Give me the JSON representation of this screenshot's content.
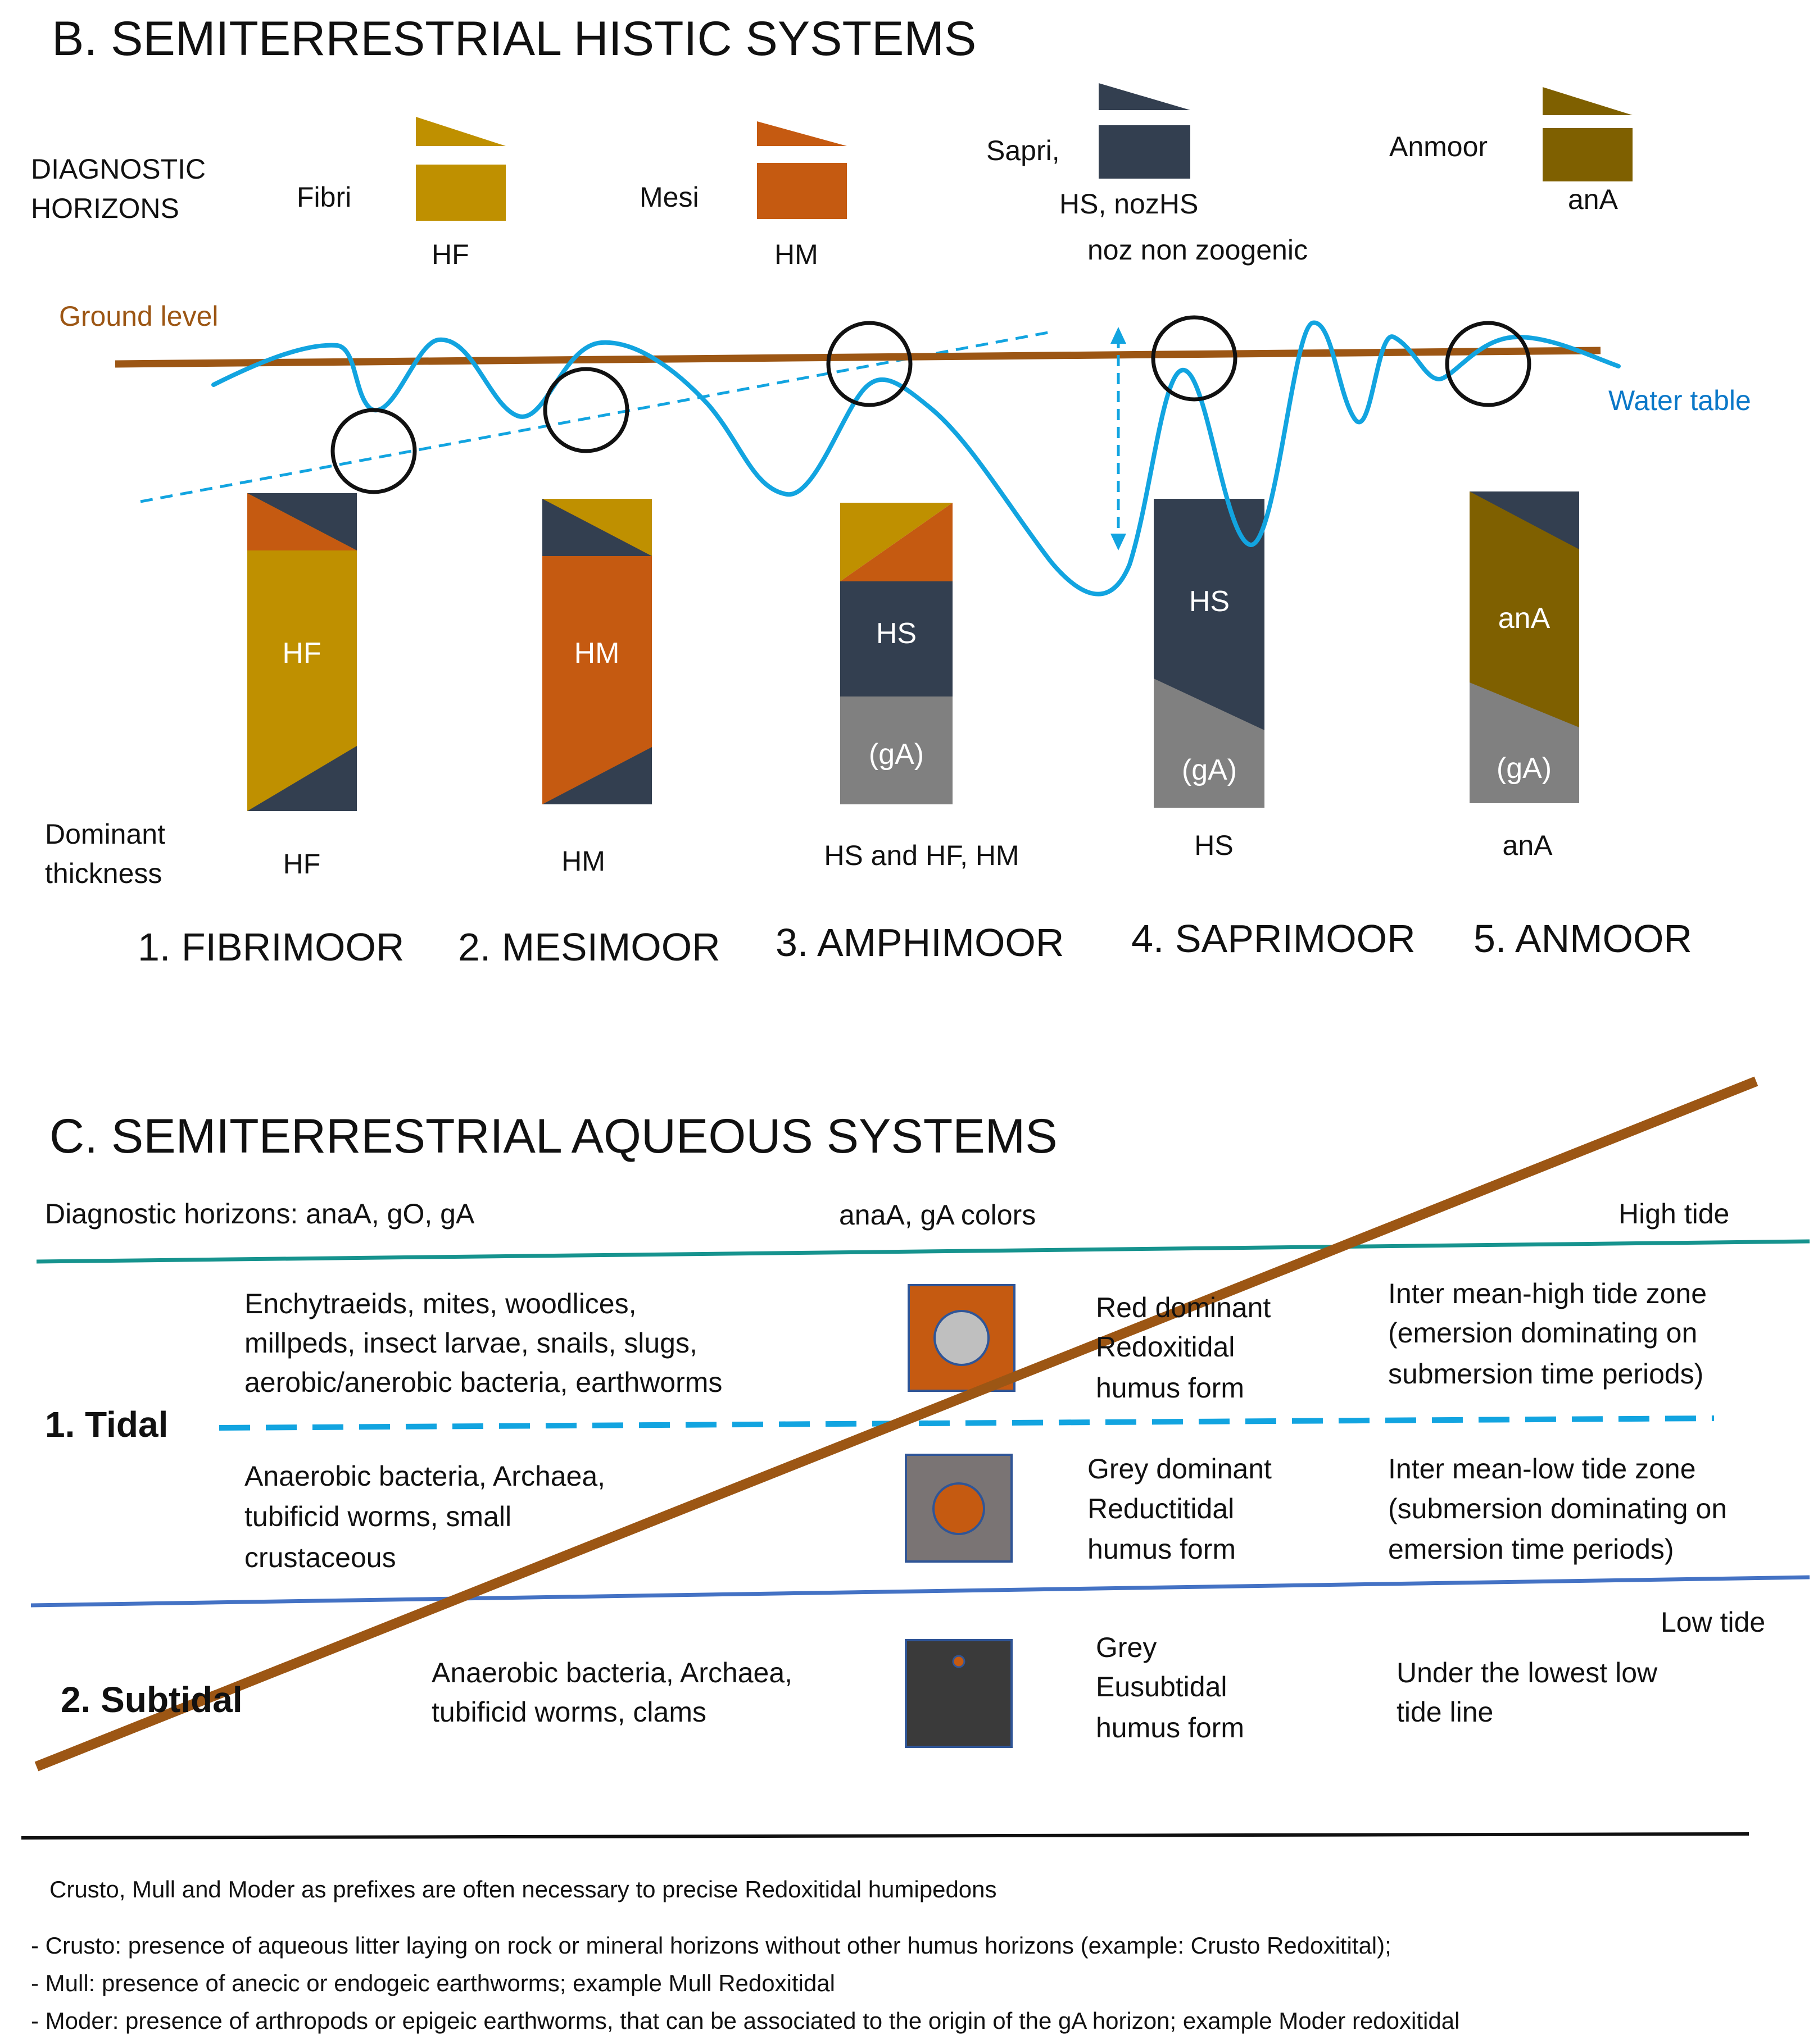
{
  "colors": {
    "fibri": "#bf9000",
    "mesi": "#c55a11",
    "sapri": "#333f50",
    "anmoor": "#7f6000",
    "grey": "#808080",
    "ground": "#9c5614",
    "water": "#12a4e0",
    "teal": "#16938e",
    "blue": "#4472c4",
    "darkgrey": "#3a3a3a"
  },
  "sectionB": {
    "title": "B. SEMITERRESTRIAL HISTIC SYSTEMS",
    "diagnostic_label_1": "DIAGNOSTIC",
    "diagnostic_label_2": "HORIZONS",
    "fibri": "Fibri",
    "hf": "HF",
    "mesi": "Mesi",
    "hm": "HM",
    "sapri": "Sapri,",
    "hs_noz": "HS, nozHS",
    "noz_note": "noz non zoogenic",
    "anmoor": "Anmoor",
    "ana": "anA",
    "ground_level": "Ground level",
    "water_table": "Water table",
    "dominant_1": "Dominant",
    "dominant_2": "thickness",
    "col1_hf": "HF",
    "col2_hm": "HM",
    "col3_hs": "HS",
    "col3_ga": "(gA)",
    "col4_hs": "HS",
    "col4_ga": "(gA)",
    "col5_ana": "anA",
    "col5_ga": "(gA)",
    "dom1": "HF",
    "dom2": "HM",
    "dom3": "HS and HF, HM",
    "dom4": "HS",
    "dom5": "anA",
    "moor1": "1. FIBRIMOOR",
    "moor2": "2. MESIMOOR",
    "moor3": "3. AMPHIMOOR",
    "moor4": "4. SAPRIMOOR",
    "moor5": "5. ANMOOR"
  },
  "sectionC": {
    "title": "C. SEMITERRESTRIAL AQUEOUS SYSTEMS",
    "diag": "Diagnostic horizons: anaA, gO, gA",
    "colors_label": "anaA, gA colors",
    "high_tide": "High tide",
    "low_tide": "Low tide",
    "tidal": "1. Tidal",
    "subtidal": "2. Subtidal",
    "org1": [
      "Enchytraeids, mites, woodlices,",
      "millpeds, insect larvae, snails, slugs,",
      "aerobic/anerobic bacteria, earthworms"
    ],
    "form1": [
      "Red dominant",
      "Redoxitidal",
      "humus form"
    ],
    "zone1": [
      "Inter mean-high tide zone",
      "(emersion dominating on",
      "submersion time periods)"
    ],
    "org2": [
      "Anaerobic bacteria, Archaea,",
      "tubificid worms, small",
      "crustaceous"
    ],
    "form2": [
      "Grey dominant",
      "Reductitidal",
      "humus form"
    ],
    "zone2": [
      "Inter mean-low tide zone",
      "(submersion dominating on",
      "emersion time periods)"
    ],
    "org3": [
      "Anaerobic bacteria, Archaea,",
      "tubificid worms, clams"
    ],
    "form3": [
      "Grey",
      "Eusubtidal",
      "humus form"
    ],
    "zone3": [
      "Under the lowest  low",
      "tide line"
    ]
  },
  "notes": {
    "intro": "Crusto, Mull and Moder as prefixes are often necessary to precise Redoxitidal humipedons",
    "crusto": "- Crusto: presence of aqueous litter laying on rock or mineral horizons without other humus horizons (example: Crusto Redoxitital);",
    "mull": "- Mull: presence of anecic or endogeic earthworms; example Mull Redoxitidal",
    "moder": "- Moder: presence of arthropods or epigeic earthworms, that can be associated to the origin of the gA horizon; example Moder redoxitidal"
  }
}
